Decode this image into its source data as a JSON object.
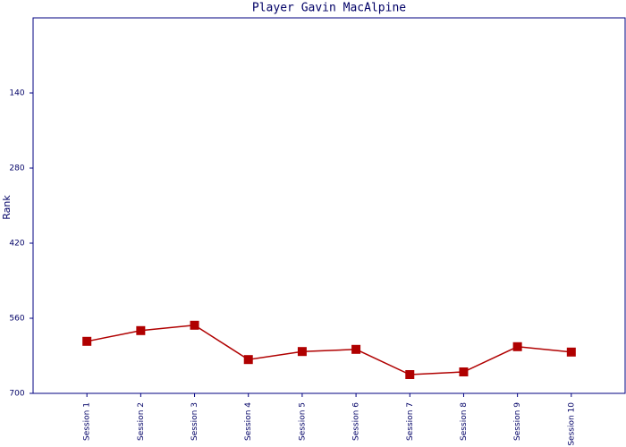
{
  "chart_data": {
    "type": "line",
    "title": "Player Gavin MacAlpine",
    "y_label": "Rank",
    "categories": [
      "Session 1",
      "Session 2",
      "Session 3",
      "Session 4",
      "Session 5",
      "Session 6",
      "Session 7",
      "Session 8",
      "Session 9",
      "Session 10"
    ],
    "series": [
      {
        "name": "Rank",
        "color": "#b00000",
        "values": [
          603,
          583,
          573,
          637,
          622,
          618,
          665,
          660,
          613,
          623
        ]
      }
    ],
    "ylim": [
      700,
      0
    ],
    "yticks": [
      140,
      280,
      420,
      560,
      700
    ],
    "inverted_y": true
  }
}
